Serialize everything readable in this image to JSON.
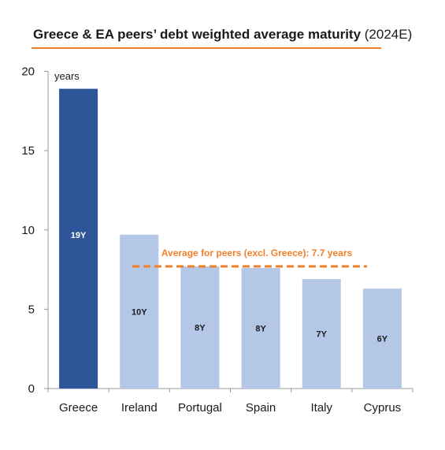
{
  "title": {
    "main": "Greece & EA peers’ debt weighted average maturity",
    "suffix": "(2024E)"
  },
  "colors": {
    "greece": "#2e5597",
    "peers": "#b4c7e7",
    "accent": "#f07f2a",
    "axis": "#9a9a9a"
  },
  "chart_data": {
    "type": "bar",
    "title": "Greece & EA peers’ debt weighted average maturity (2024E)",
    "ylabel": "years",
    "xlabel": "",
    "ylim": [
      0,
      20
    ],
    "yticks": [
      0,
      5,
      10,
      15,
      20
    ],
    "grid": false,
    "categories": [
      "Greece",
      "Ireland",
      "Portugal",
      "Spain",
      "Italy",
      "Cyprus"
    ],
    "values": [
      18.9,
      9.7,
      7.7,
      7.6,
      6.9,
      6.3
    ],
    "data_labels": [
      "19Y",
      "10Y",
      "8Y",
      "8Y",
      "7Y",
      "6Y"
    ],
    "reference_line": {
      "value": 7.7,
      "label": "Average for peers (excl. Greece): 7.7 years",
      "style": "dashed"
    }
  }
}
